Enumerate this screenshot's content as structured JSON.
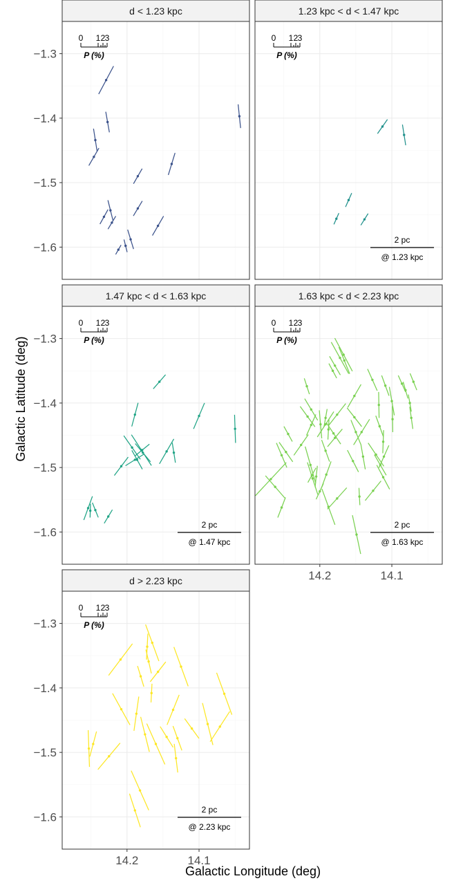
{
  "chart_data": {
    "type": "faceted-vector-map",
    "xlabel": "Galactic Longitude (deg)",
    "ylabel": "Galactic Latitude (deg)",
    "xlim": [
      14.29,
      14.03
    ],
    "ylim": [
      -1.65,
      -1.25
    ],
    "x_ticks": [
      {
        "value": 14.2,
        "label": "14.2"
      },
      {
        "value": 14.1,
        "label": "14.1"
      }
    ],
    "y_ticks": [
      {
        "value": -1.3,
        "label": "−1.3"
      },
      {
        "value": -1.4,
        "label": "−1.4"
      },
      {
        "value": -1.5,
        "label": "−1.5"
      },
      {
        "value": -1.6,
        "label": "−1.6"
      }
    ],
    "grid": true,
    "key": {
      "tick_labels": [
        "0",
        "1",
        "2",
        "3"
      ],
      "label": "P (%)"
    },
    "panels": [
      {
        "title": "d < 1.23 kpc",
        "color": "#3b528b",
        "scalebar": null,
        "vectors": [
          {
            "x": 14.229,
            "y": -1.341,
            "pa": -28,
            "len": 0.044
          },
          {
            "x": 14.244,
            "y": -1.434,
            "pa": 9,
            "len": 0.032
          },
          {
            "x": 14.227,
            "y": -1.406,
            "pa": 10,
            "len": 0.029
          },
          {
            "x": 14.044,
            "y": -1.397,
            "pa": 6,
            "len": 0.033
          },
          {
            "x": 14.246,
            "y": -1.46,
            "pa": -30,
            "len": 0.028
          },
          {
            "x": 14.185,
            "y": -1.49,
            "pa": -30,
            "len": 0.024
          },
          {
            "x": 14.138,
            "y": -1.471,
            "pa": -17,
            "len": 0.032
          },
          {
            "x": 14.223,
            "y": -1.543,
            "pa": 14,
            "len": 0.029
          },
          {
            "x": 14.232,
            "y": -1.553,
            "pa": -29,
            "len": 0.023
          },
          {
            "x": 14.185,
            "y": -1.54,
            "pa": -31,
            "len": 0.024
          },
          {
            "x": 14.221,
            "y": -1.562,
            "pa": -31,
            "len": 0.021
          },
          {
            "x": 14.157,
            "y": -1.567,
            "pa": -30,
            "len": 0.031
          },
          {
            "x": 14.202,
            "y": -1.598,
            "pa": 14,
            "len": 0.018
          },
          {
            "x": 14.212,
            "y": -1.604,
            "pa": -30,
            "len": 0.015
          },
          {
            "x": 14.195,
            "y": -1.588,
            "pa": 17,
            "len": 0.028
          }
        ]
      },
      {
        "title": "1.23 kpc < d < 1.47 kpc",
        "color": "#21918c",
        "scalebar": {
          "label": "2 pc",
          "sublabel": "@ 1.23 kpc"
        },
        "vectors": [
          {
            "x": 14.113,
            "y": -1.413,
            "pa": -35,
            "len": 0.024
          },
          {
            "x": 14.083,
            "y": -1.426,
            "pa": 9,
            "len": 0.029
          },
          {
            "x": 14.16,
            "y": -1.527,
            "pa": -24,
            "len": 0.021
          },
          {
            "x": 14.177,
            "y": -1.556,
            "pa": -24,
            "len": 0.017
          },
          {
            "x": 14.138,
            "y": -1.557,
            "pa": -32,
            "len": 0.019
          }
        ]
      },
      {
        "title": "1.47 kpc < d < 1.63 kpc",
        "color": "#20a486",
        "scalebar": {
          "label": "2 pc",
          "sublabel": "@ 1.47 kpc"
        },
        "vectors": [
          {
            "x": 14.155,
            "y": -1.367,
            "pa": -41,
            "len": 0.026
          },
          {
            "x": 14.1,
            "y": -1.42,
            "pa": -23,
            "len": 0.039
          },
          {
            "x": 14.189,
            "y": -1.418,
            "pa": -15,
            "len": 0.034
          },
          {
            "x": 14.05,
            "y": -1.44,
            "pa": 2,
            "len": 0.039
          },
          {
            "x": 14.179,
            "y": -1.473,
            "pa": -51,
            "len": 0.026
          },
          {
            "x": 14.193,
            "y": -1.469,
            "pa": 35,
            "len": 0.04
          },
          {
            "x": 14.18,
            "y": -1.473,
            "pa": 33,
            "len": 0.051
          },
          {
            "x": 14.178,
            "y": -1.477,
            "pa": 40,
            "len": 0.033
          },
          {
            "x": 14.145,
            "y": -1.475,
            "pa": -30,
            "len": 0.04
          },
          {
            "x": 14.135,
            "y": -1.477,
            "pa": 9,
            "len": 0.028
          },
          {
            "x": 14.189,
            "y": -1.488,
            "pa": -58,
            "len": 0.031
          },
          {
            "x": 14.208,
            "y": -1.498,
            "pa": -37,
            "len": 0.032
          },
          {
            "x": 14.186,
            "y": -1.488,
            "pa": 29,
            "len": 0.03
          },
          {
            "x": 14.254,
            "y": -1.563,
            "pa": -20,
            "len": 0.035
          },
          {
            "x": 14.244,
            "y": -1.566,
            "pa": 22,
            "len": 0.022
          },
          {
            "x": 14.251,
            "y": -1.567,
            "pa": -2,
            "len": 0.019
          },
          {
            "x": 14.226,
            "y": -1.576,
            "pa": -31,
            "len": 0.022
          }
        ]
      },
      {
        "title": "1.63 kpc < d < 2.23 kpc",
        "color": "#7ad151",
        "scalebar": {
          "label": "2 pc",
          "sublabel": "@ 1.63 kpc"
        },
        "vectors": [
          {
            "x": 14.172,
            "y": -1.33,
            "pa": 29,
            "len": 0.05
          },
          {
            "x": 14.167,
            "y": -1.325,
            "pa": 28,
            "len": 0.052
          },
          {
            "x": 14.166,
            "y": -1.334,
            "pa": 22,
            "len": 0.04
          },
          {
            "x": 14.179,
            "y": -1.342,
            "pa": 30,
            "len": 0.03
          },
          {
            "x": 14.182,
            "y": -1.35,
            "pa": 28,
            "len": 0.023
          },
          {
            "x": 14.127,
            "y": -1.364,
            "pa": 24,
            "len": 0.033
          },
          {
            "x": 14.109,
            "y": -1.373,
            "pa": 20,
            "len": 0.03
          },
          {
            "x": 14.086,
            "y": -1.37,
            "pa": 24,
            "len": 0.025
          },
          {
            "x": 14.07,
            "y": -1.367,
            "pa": 22,
            "len": 0.025
          },
          {
            "x": 14.081,
            "y": -1.38,
            "pa": 16,
            "len": 0.024
          },
          {
            "x": 14.218,
            "y": -1.374,
            "pa": 18,
            "len": 0.023
          },
          {
            "x": 14.152,
            "y": -1.389,
            "pa": -30,
            "len": 0.037
          },
          {
            "x": 14.1,
            "y": -1.397,
            "pa": 10,
            "len": 0.04
          },
          {
            "x": 14.118,
            "y": -1.403,
            "pa": 1,
            "len": 0.036
          },
          {
            "x": 14.075,
            "y": -1.4,
            "pa": 10,
            "len": 0.024
          },
          {
            "x": 14.212,
            "y": -1.41,
            "pa": 31,
            "len": 0.035
          },
          {
            "x": 14.217,
            "y": -1.421,
            "pa": 36,
            "len": 0.035
          },
          {
            "x": 14.192,
            "y": -1.423,
            "pa": -10,
            "len": 0.025
          },
          {
            "x": 14.176,
            "y": -1.418,
            "pa": -38,
            "len": 0.039
          },
          {
            "x": 14.152,
            "y": -1.422,
            "pa": 38,
            "len": 0.033
          },
          {
            "x": 14.212,
            "y": -1.434,
            "pa": -24,
            "len": 0.032
          },
          {
            "x": 14.199,
            "y": -1.433,
            "pa": 5,
            "len": 0.039
          },
          {
            "x": 14.188,
            "y": -1.441,
            "pa": -3,
            "len": 0.028
          },
          {
            "x": 14.192,
            "y": -1.433,
            "pa": -33,
            "len": 0.042
          },
          {
            "x": 14.181,
            "y": -1.447,
            "pa": 34,
            "len": 0.036
          },
          {
            "x": 14.179,
            "y": -1.454,
            "pa": -40,
            "len": 0.032
          },
          {
            "x": 14.142,
            "y": -1.445,
            "pa": -32,
            "len": 0.042
          },
          {
            "x": 14.15,
            "y": -1.445,
            "pa": 22,
            "len": 0.036
          },
          {
            "x": 14.117,
            "y": -1.436,
            "pa": 20,
            "len": 0.031
          },
          {
            "x": 14.099,
            "y": -1.425,
            "pa": 1,
            "len": 0.036
          },
          {
            "x": 14.073,
            "y": -1.423,
            "pa": 8,
            "len": 0.031
          },
          {
            "x": 14.112,
            "y": -1.46,
            "pa": -2,
            "len": 0.032
          },
          {
            "x": 14.244,
            "y": -1.448,
            "pa": 29,
            "len": 0.024
          },
          {
            "x": 14.247,
            "y": -1.476,
            "pa": 35,
            "len": 0.033
          },
          {
            "x": 14.253,
            "y": -1.481,
            "pa": 23,
            "len": 0.037
          },
          {
            "x": 14.226,
            "y": -1.465,
            "pa": -35,
            "len": 0.035
          },
          {
            "x": 14.192,
            "y": -1.474,
            "pa": 20,
            "len": 0.032
          },
          {
            "x": 14.14,
            "y": -1.483,
            "pa": 10,
            "len": 0.036
          },
          {
            "x": 14.154,
            "y": -1.49,
            "pa": 27,
            "len": 0.034
          },
          {
            "x": 14.111,
            "y": -1.483,
            "pa": -24,
            "len": 0.034
          },
          {
            "x": 14.122,
            "y": -1.48,
            "pa": 34,
            "len": 0.039
          },
          {
            "x": 14.116,
            "y": -1.496,
            "pa": 30,
            "len": 0.033
          },
          {
            "x": 14.213,
            "y": -1.496,
            "pa": 16,
            "len": 0.053
          },
          {
            "x": 14.211,
            "y": -1.512,
            "pa": -29,
            "len": 0.023
          },
          {
            "x": 14.21,
            "y": -1.517,
            "pa": 18,
            "len": 0.047
          },
          {
            "x": 14.205,
            "y": -1.514,
            "pa": -6,
            "len": 0.03
          },
          {
            "x": 14.191,
            "y": -1.511,
            "pa": -20,
            "len": 0.039
          },
          {
            "x": 14.268,
            "y": -1.518,
            "pa": -43,
            "len": 0.063
          },
          {
            "x": 14.262,
            "y": -1.53,
            "pa": 41,
            "len": 0.041
          },
          {
            "x": 14.2,
            "y": -1.537,
            "pa": -25,
            "len": 0.024
          },
          {
            "x": 14.112,
            "y": -1.515,
            "pa": 28,
            "len": 0.038
          },
          {
            "x": 14.126,
            "y": -1.536,
            "pa": -39,
            "len": 0.035
          },
          {
            "x": 14.145,
            "y": -1.545,
            "pa": 3,
            "len": 0.024
          },
          {
            "x": 14.176,
            "y": -1.548,
            "pa": -42,
            "len": 0.04
          },
          {
            "x": 14.188,
            "y": -1.561,
            "pa": 20,
            "len": 0.053
          },
          {
            "x": 14.253,
            "y": -1.562,
            "pa": -21,
            "len": 0.03
          },
          {
            "x": 14.149,
            "y": -1.604,
            "pa": 12,
            "len": 0.055
          }
        ]
      },
      {
        "title": "d > 2.23 kpc",
        "color": "#fde725",
        "scalebar": {
          "label": "2 pc",
          "sublabel": "@ 2.23 kpc"
        },
        "vectors": [
          {
            "x": 14.209,
            "y": -1.356,
            "pa": -37,
            "len": 0.055
          },
          {
            "x": 14.172,
            "y": -1.336,
            "pa": -3,
            "len": 0.036
          },
          {
            "x": 14.165,
            "y": -1.33,
            "pa": 20,
            "len": 0.054
          },
          {
            "x": 14.17,
            "y": -1.359,
            "pa": 13,
            "len": 0.034
          },
          {
            "x": 14.157,
            "y": -1.375,
            "pa": -38,
            "len": 0.035
          },
          {
            "x": 14.125,
            "y": -1.367,
            "pa": 20,
            "len": 0.058
          },
          {
            "x": 14.181,
            "y": -1.382,
            "pa": 17,
            "len": 0.03
          },
          {
            "x": 14.166,
            "y": -1.408,
            "pa": -3,
            "len": 0.026
          },
          {
            "x": 14.065,
            "y": -1.409,
            "pa": 20,
            "len": 0.062
          },
          {
            "x": 14.208,
            "y": -1.433,
            "pa": 29,
            "len": 0.05
          },
          {
            "x": 14.187,
            "y": -1.44,
            "pa": -8,
            "len": 0.048
          },
          {
            "x": 14.136,
            "y": -1.434,
            "pa": -22,
            "len": 0.045
          },
          {
            "x": 14.088,
            "y": -1.456,
            "pa": 14,
            "len": 0.06
          },
          {
            "x": 14.071,
            "y": -1.46,
            "pa": -33,
            "len": 0.05
          },
          {
            "x": 14.11,
            "y": -1.463,
            "pa": 36,
            "len": 0.034
          },
          {
            "x": 14.175,
            "y": -1.472,
            "pa": 14,
            "len": 0.05
          },
          {
            "x": 14.145,
            "y": -1.476,
            "pa": 32,
            "len": 0.034
          },
          {
            "x": 14.13,
            "y": -1.478,
            "pa": 20,
            "len": 0.036
          },
          {
            "x": 14.16,
            "y": -1.487,
            "pa": 24,
            "len": 0.062
          },
          {
            "x": 14.253,
            "y": -1.494,
            "pa": 2,
            "len": 0.051
          },
          {
            "x": 14.247,
            "y": -1.487,
            "pa": -15,
            "len": 0.036
          },
          {
            "x": 14.225,
            "y": -1.506,
            "pa": -40,
            "len": 0.048
          },
          {
            "x": 14.132,
            "y": -1.509,
            "pa": 7,
            "len": 0.04
          },
          {
            "x": 14.182,
            "y": -1.559,
            "pa": 24,
            "len": 0.06
          },
          {
            "x": 14.189,
            "y": -1.59,
            "pa": 18,
            "len": 0.049
          }
        ]
      }
    ]
  }
}
